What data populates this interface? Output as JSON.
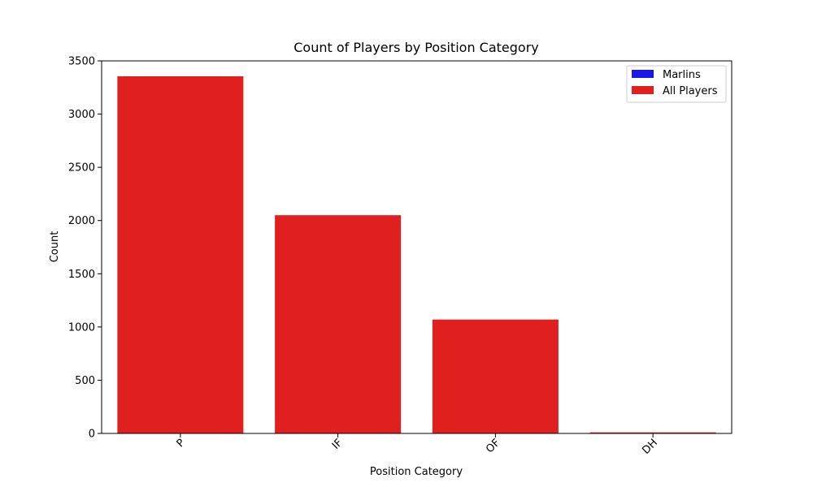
{
  "chart_data": {
    "type": "bar",
    "title": "Count of Players by Position Category",
    "xlabel": "Position Category",
    "ylabel": "Count",
    "categories": [
      "P",
      "IF",
      "OF",
      "DH"
    ],
    "ylim": [
      0,
      3500
    ],
    "yticks": [
      0,
      500,
      1000,
      1500,
      2000,
      2500,
      3000,
      3500
    ],
    "grid": false,
    "legend_position": "top-right",
    "series": [
      {
        "name": "Marlins",
        "color": "#1a1ae6",
        "values": [
          0,
          0,
          0,
          0
        ]
      },
      {
        "name": "All Players",
        "color": "#e01f1f",
        "values": [
          3355,
          2050,
          1070,
          10
        ]
      }
    ]
  }
}
